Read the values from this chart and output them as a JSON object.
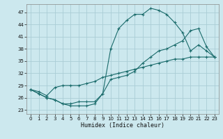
{
  "title": "",
  "xlabel": "Humidex (Indice chaleur)",
  "ylabel": "",
  "bg_color": "#cce8ee",
  "grid_color": "#aacdd6",
  "line_color": "#1a6b6b",
  "xlim": [
    -0.5,
    23.5
  ],
  "ylim": [
    22,
    49
  ],
  "yticks": [
    23,
    26,
    29,
    32,
    35,
    38,
    41,
    44,
    47
  ],
  "xticks": [
    0,
    1,
    2,
    3,
    4,
    5,
    6,
    7,
    8,
    9,
    10,
    11,
    12,
    13,
    14,
    15,
    16,
    17,
    18,
    19,
    20,
    21,
    22,
    23
  ],
  "line1_x": [
    0,
    1,
    2,
    3,
    4,
    5,
    6,
    7,
    8,
    9,
    10,
    11,
    12,
    13,
    14,
    15,
    16,
    17,
    18,
    19,
    20,
    21,
    22,
    23
  ],
  "line1_y": [
    28,
    27,
    26,
    25.5,
    24.5,
    24,
    24,
    24,
    24.5,
    27,
    38,
    43,
    45,
    46.5,
    46.5,
    48,
    47.5,
    46.5,
    44.5,
    42,
    37.5,
    39,
    37.5,
    36
  ],
  "line2_x": [
    0,
    1,
    2,
    3,
    4,
    5,
    6,
    7,
    8,
    9,
    10,
    11,
    12,
    13,
    14,
    15,
    16,
    17,
    18,
    19,
    20,
    21,
    22,
    23
  ],
  "line2_y": [
    28,
    27,
    26,
    25.5,
    24.5,
    24.5,
    25,
    25,
    25,
    27,
    30.5,
    31,
    31.5,
    32.5,
    34.5,
    36,
    37.5,
    38,
    39,
    40,
    42.5,
    43,
    38.5,
    36
  ],
  "line3_x": [
    0,
    1,
    2,
    3,
    4,
    5,
    6,
    7,
    8,
    9,
    10,
    11,
    12,
    13,
    14,
    15,
    16,
    17,
    18,
    19,
    20,
    21,
    22,
    23
  ],
  "line3_y": [
    28,
    27.5,
    26.5,
    28.5,
    29,
    29,
    29,
    29.5,
    30,
    31,
    31.5,
    32,
    32.5,
    33,
    33.5,
    34,
    34.5,
    35,
    35.5,
    35.5,
    36,
    36,
    36,
    36
  ]
}
